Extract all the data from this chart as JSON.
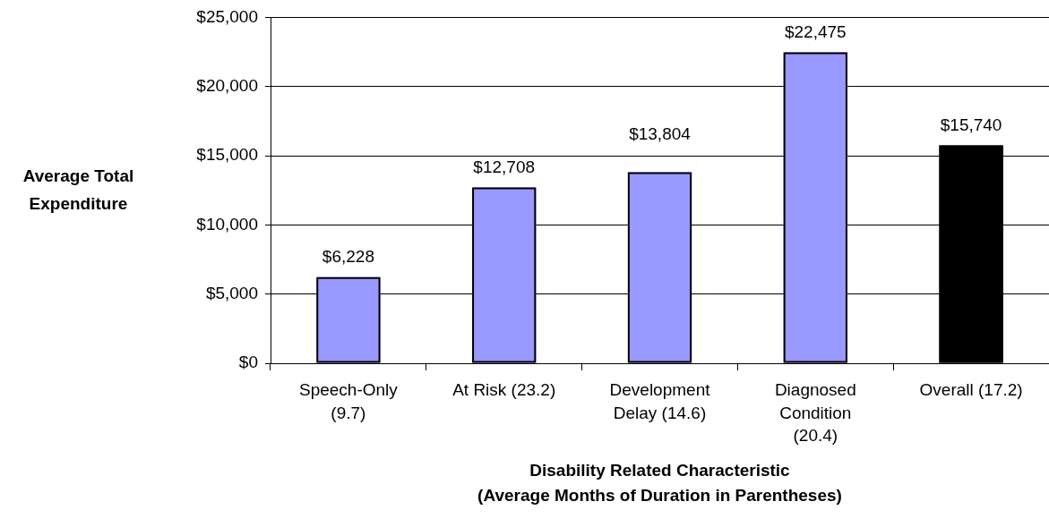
{
  "chart_data": {
    "type": "bar",
    "xlabel": "Disability Related Characteristic\n(Average Months of Duration in Parentheses)",
    "ylabel": "Average Total Expenditure",
    "categories": [
      "Speech-Only (9.7)",
      "At Risk (23.2)",
      "Development Delay (14.6)",
      "Diagnosed Condition (20.4)",
      "Overall (17.2)"
    ],
    "values": [
      6228,
      12708,
      13804,
      22475,
      15740
    ],
    "colors": [
      "#9999ff",
      "#9999ff",
      "#9999ff",
      "#9999ff",
      "#000000"
    ],
    "value_labels": [
      "$6,228",
      "$12,708",
      "$13,804",
      "$22,475",
      "$15,740"
    ],
    "ylim": [
      0,
      25000
    ],
    "yticks": [
      {
        "value": 0,
        "label": "$0"
      },
      {
        "value": 5000,
        "label": "$5,000"
      },
      {
        "value": 10000,
        "label": "$10,000"
      },
      {
        "value": 15000,
        "label": "$15,000"
      },
      {
        "value": 20000,
        "label": "$20,000"
      },
      {
        "value": 25000,
        "label": "$25,000"
      }
    ],
    "grid": "y"
  }
}
